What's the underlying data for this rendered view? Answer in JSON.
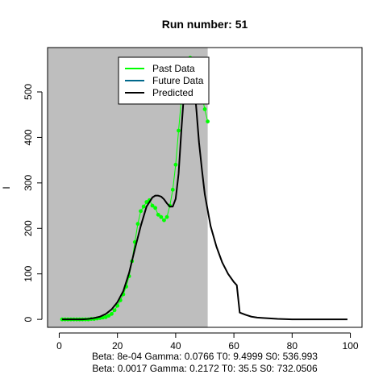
{
  "chart_data": {
    "type": "line",
    "title": "Run number:  51",
    "xlabel": "",
    "ylabel": "I",
    "xlim": [
      -4,
      104
    ],
    "ylim": [
      -17.5,
      597.5
    ],
    "x_ticks": [
      0,
      20,
      40,
      60,
      80,
      100
    ],
    "y_ticks": [
      0,
      100,
      200,
      300,
      400,
      500
    ],
    "shaded_region": {
      "x_from": -4,
      "x_to": 51,
      "color": "#bebebe"
    },
    "legend": {
      "position": "top-center",
      "entries": [
        {
          "label": "Past Data",
          "color": "#00ff00"
        },
        {
          "label": "Future Data",
          "color": "#00688b"
        },
        {
          "label": "Predicted",
          "color": "#000000"
        }
      ]
    },
    "series": [
      {
        "name": "Past Data",
        "style": "points-line",
        "color": "#00ff00",
        "points": [
          [
            1,
            0
          ],
          [
            2,
            0
          ],
          [
            3,
            0
          ],
          [
            4,
            0
          ],
          [
            5,
            0
          ],
          [
            6,
            0
          ],
          [
            7,
            0
          ],
          [
            8,
            0
          ],
          [
            9,
            0
          ],
          [
            10,
            0
          ],
          [
            11,
            1
          ],
          [
            12,
            1
          ],
          [
            13,
            2
          ],
          [
            14,
            3
          ],
          [
            15,
            4
          ],
          [
            16,
            5
          ],
          [
            17,
            8
          ],
          [
            18,
            12
          ],
          [
            19,
            20
          ],
          [
            20,
            30
          ],
          [
            21,
            42
          ],
          [
            22,
            55
          ],
          [
            23,
            72
          ],
          [
            24,
            95
          ],
          [
            25,
            128
          ],
          [
            26,
            170
          ],
          [
            27,
            210
          ],
          [
            28,
            238
          ],
          [
            29,
            248
          ],
          [
            30,
            258
          ],
          [
            31,
            262
          ],
          [
            32,
            250
          ],
          [
            33,
            245
          ],
          [
            34,
            230
          ],
          [
            35,
            225
          ],
          [
            36,
            218
          ],
          [
            37,
            225
          ],
          [
            38,
            250
          ],
          [
            39,
            285
          ],
          [
            40,
            340
          ],
          [
            41,
            415
          ],
          [
            42,
            488
          ],
          [
            43,
            540
          ],
          [
            44,
            570
          ],
          [
            45,
            575
          ],
          [
            46,
            562
          ],
          [
            47,
            538
          ],
          [
            48,
            515
          ],
          [
            49,
            492
          ],
          [
            50,
            462
          ],
          [
            51,
            435
          ]
        ]
      },
      {
        "name": "Predicted",
        "style": "line",
        "color": "#000000",
        "points": [
          [
            1,
            0
          ],
          [
            5,
            0
          ],
          [
            8,
            0
          ],
          [
            10,
            1
          ],
          [
            12,
            3
          ],
          [
            14,
            6
          ],
          [
            16,
            12
          ],
          [
            18,
            22
          ],
          [
            20,
            38
          ],
          [
            22,
            62
          ],
          [
            24,
            102
          ],
          [
            26,
            155
          ],
          [
            28,
            205
          ],
          [
            30,
            248
          ],
          [
            32,
            268
          ],
          [
            33,
            272
          ],
          [
            34,
            272
          ],
          [
            35,
            270
          ],
          [
            36,
            264
          ],
          [
            37,
            255
          ],
          [
            38,
            248
          ],
          [
            39,
            248
          ],
          [
            40,
            265
          ],
          [
            41,
            320
          ],
          [
            42,
            420
          ],
          [
            43,
            510
          ],
          [
            44,
            545
          ],
          [
            45,
            550
          ],
          [
            46,
            530
          ],
          [
            47,
            470
          ],
          [
            48,
            390
          ],
          [
            49,
            330
          ],
          [
            50,
            275
          ],
          [
            51,
            240
          ],
          [
            52,
            205
          ],
          [
            54,
            160
          ],
          [
            56,
            125
          ],
          [
            58,
            100
          ],
          [
            60,
            82
          ],
          [
            61,
            75
          ],
          [
            62,
            15
          ],
          [
            64,
            10
          ],
          [
            66,
            6
          ],
          [
            68,
            4
          ],
          [
            70,
            3
          ],
          [
            75,
            1
          ],
          [
            80,
            0
          ],
          [
            90,
            0
          ],
          [
            99,
            0
          ]
        ]
      }
    ]
  },
  "footer": {
    "line1": "Beta:  8e-04 Gamma:  0.0766 T0:  9.4999 S0:  536.993",
    "line2": "Beta:  0.0017 Gamma:  0.2172 T0:  35.5 S0:  732.0506"
  }
}
